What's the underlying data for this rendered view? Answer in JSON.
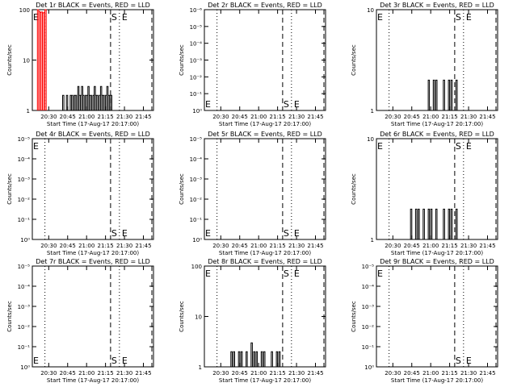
{
  "window_size": "640x480",
  "colors": {
    "events": "#000000",
    "lld": "#ff0000",
    "background": "#ffffff"
  },
  "xlabel": "Start Time (17-Aug-17 20:17:00)",
  "ylabel": "Counts/sec",
  "x_ticks": [
    "20:30",
    "20:45",
    "21:00",
    "21:15",
    "21:30",
    "21:45"
  ],
  "markers": {
    "s_label": "S",
    "e_label": "E"
  },
  "chart_data": [
    {
      "type": "line",
      "title": "Det 1r BLACK = Events, RED = LLD",
      "ylim": [
        1,
        100
      ],
      "y_scale": "log",
      "y_ticks": [
        "1",
        "10",
        "100"
      ],
      "series": [
        {
          "color": "#000000",
          "x": [
            "20:40",
            "20:41",
            "20:42",
            "20:43",
            "20:44",
            "20:45",
            "20:46",
            "20:47",
            "20:48",
            "20:49",
            "20:50",
            "20:51",
            "20:52",
            "20:53",
            "20:54",
            "20:55",
            "20:56",
            "20:57",
            "20:58",
            "20:59",
            "21:00",
            "21:01",
            "21:02",
            "21:03",
            "21:04",
            "21:05",
            "21:06",
            "21:07",
            "21:08",
            "21:09",
            "21:10",
            "21:11",
            "21:12",
            "21:13",
            "21:14",
            "21:15",
            "21:16",
            "21:17",
            "21:18",
            "21:19"
          ],
          "values": [
            1,
            2,
            1,
            1,
            2,
            1,
            1,
            2,
            2,
            1,
            2,
            2,
            1,
            3,
            2,
            2,
            3,
            2,
            1,
            2,
            2,
            3,
            2,
            2,
            1,
            2,
            3,
            2,
            2,
            1,
            2,
            3,
            2,
            2,
            1,
            2,
            3,
            2,
            2,
            2
          ]
        },
        {
          "color": "#ff0000",
          "x": [
            "20:21",
            "20:22",
            "20:23",
            "20:24",
            "20:25",
            "20:26",
            "20:27"
          ],
          "values": [
            100,
            92,
            88,
            90,
            86,
            89,
            100
          ]
        }
      ]
    },
    {
      "type": "line",
      "title": "Det 2r BLACK = Events, RED = LLD",
      "ylim": [
        1,
        1e-06
      ],
      "y_scale": "log",
      "y_ticks": [
        "10⁰",
        "10⁻¹",
        "10⁻²",
        "10⁻³",
        "10⁻⁴",
        "10⁻⁵",
        "10⁻⁶"
      ],
      "series": []
    },
    {
      "type": "line",
      "title": "Det 3r BLACK = Events, RED = LLD",
      "ylim": [
        1,
        10
      ],
      "y_scale": "log",
      "y_ticks": [
        "1",
        "10"
      ],
      "series": [
        {
          "color": "#000000",
          "x": [
            "20:56",
            "20:58",
            "21:00",
            "21:02",
            "21:04",
            "21:06",
            "21:08",
            "21:10",
            "21:12",
            "21:14",
            "21:16",
            "21:18",
            "21:20"
          ],
          "values": [
            1,
            2,
            1,
            2,
            2,
            1,
            1,
            2,
            1,
            2,
            2,
            1,
            2
          ]
        }
      ]
    },
    {
      "type": "line",
      "title": "Det 4r BLACK = Events, RED = LLD",
      "ylim": [
        1,
        1e-05
      ],
      "y_scale": "log",
      "y_ticks": [
        "10⁰",
        "10⁻¹",
        "10⁻²",
        "10⁻³",
        "10⁻⁴",
        "10⁻⁵"
      ],
      "series": []
    },
    {
      "type": "line",
      "title": "Det 5r BLACK = Events, RED = LLD",
      "ylim": [
        1,
        1e-05
      ],
      "y_scale": "log",
      "y_ticks": [
        "10⁰",
        "10⁻¹",
        "10⁻²",
        "10⁻³",
        "10⁻⁴",
        "10⁻⁵"
      ],
      "series": []
    },
    {
      "type": "line",
      "title": "Det 6r BLACK = Events, RED = LLD",
      "ylim": [
        1,
        10
      ],
      "y_scale": "log",
      "y_ticks": [
        "1",
        "10"
      ],
      "series": [
        {
          "color": "#000000",
          "x": [
            "20:42",
            "20:44",
            "20:46",
            "20:48",
            "20:50",
            "20:52",
            "20:54",
            "20:56",
            "20:58",
            "21:00",
            "21:02",
            "21:04",
            "21:06",
            "21:08",
            "21:10",
            "21:12",
            "21:14",
            "21:16",
            "21:18",
            "21:20"
          ],
          "values": [
            1,
            2,
            1,
            2,
            2,
            1,
            2,
            1,
            2,
            2,
            1,
            2,
            1,
            1,
            2,
            1,
            2,
            2,
            1,
            2
          ]
        }
      ]
    },
    {
      "type": "line",
      "title": "Det 7r BLACK = Events, RED = LLD",
      "ylim": [
        1,
        1e-05
      ],
      "y_scale": "log",
      "y_ticks": [
        "10⁰",
        "10⁻¹",
        "10⁻²",
        "10⁻³",
        "10⁻⁴",
        "10⁻⁵"
      ],
      "series": []
    },
    {
      "type": "line",
      "title": "Det 8r BLACK = Events, RED = LLD",
      "ylim": [
        1,
        100
      ],
      "y_scale": "log",
      "y_ticks": [
        "1",
        "10",
        "100"
      ],
      "series": [
        {
          "color": "#000000",
          "x": [
            "20:36",
            "20:38",
            "20:40",
            "20:42",
            "20:44",
            "20:46",
            "20:48",
            "20:50",
            "20:52",
            "20:54",
            "20:56",
            "20:58",
            "21:00",
            "21:02",
            "21:04",
            "21:06",
            "21:08",
            "21:10",
            "21:12",
            "21:14",
            "21:16"
          ],
          "values": [
            1,
            2,
            2,
            1,
            2,
            2,
            1,
            2,
            1,
            3,
            2,
            2,
            1,
            2,
            2,
            1,
            1,
            2,
            1,
            2,
            2
          ]
        }
      ]
    },
    {
      "type": "line",
      "title": "Det 9r BLACK = Events, RED = LLD",
      "ylim": [
        1,
        1e-05
      ],
      "y_scale": "log",
      "y_ticks": [
        "10⁰",
        "10⁻¹",
        "10⁻²",
        "10⁻³",
        "10⁻⁴",
        "10⁻⁵"
      ],
      "series": []
    }
  ]
}
